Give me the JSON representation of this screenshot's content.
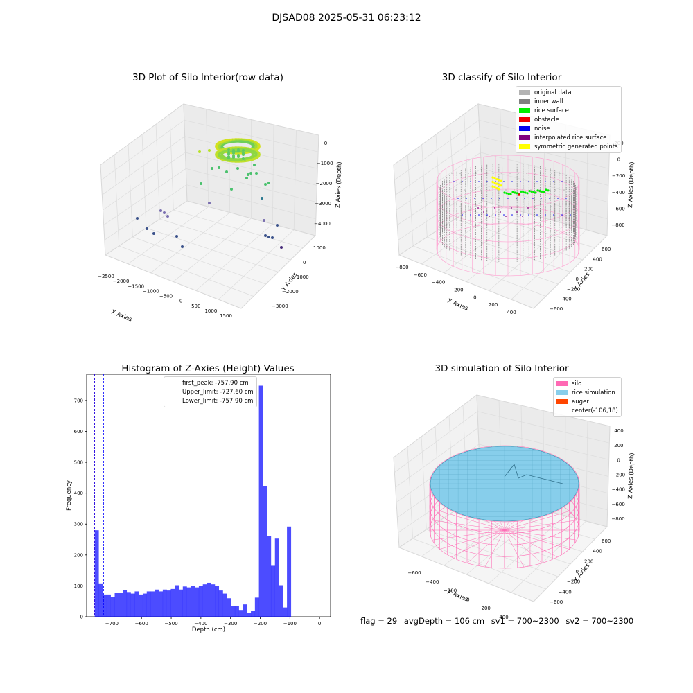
{
  "suptitle": "DJSAD08 2025-05-31 06:23:12",
  "chart_data": [
    {
      "type": "scatter",
      "subtype": "3d",
      "title": "3D Plot of Silo Interior(row data)",
      "xlabel": "X Axies",
      "ylabel": "Y Axies",
      "zlabel": "Z Axies (Depth)",
      "x_ticks": [
        "−2500",
        "−2000",
        "−1500",
        "−1000",
        "−500",
        "0",
        "500",
        "1000",
        "1500"
      ],
      "y_ticks": [
        "1000",
        "0",
        "−1000",
        "−2000",
        "−3000"
      ],
      "z_ticks": [
        "0",
        "−1000",
        "−2000",
        "−3000",
        "−4000"
      ],
      "colormap": "viridis",
      "points_description_values": {
        "dense_ring_center_z": 0,
        "outliers_z_range": [
          -4500,
          -500
        ]
      }
    },
    {
      "type": "scatter",
      "subtype": "3d",
      "title": "3D classify of Silo Interior",
      "xlabel": "X Axies",
      "ylabel": "Y Axies",
      "zlabel": "Z Axies (Depth)",
      "x_ticks": [
        "−800",
        "−600",
        "−400",
        "−200",
        "0",
        "200",
        "400"
      ],
      "y_ticks": [
        "600",
        "400",
        "200",
        "0",
        "−200",
        "−400",
        "−600"
      ],
      "z_ticks": [
        "200",
        "0",
        "−200",
        "−400",
        "−600",
        "−800"
      ],
      "legend": [
        {
          "label": "original data",
          "color": "#b3b3b3"
        },
        {
          "label": "inner wall",
          "color": "#808080"
        },
        {
          "label": "rice surface",
          "color": "#00ee00"
        },
        {
          "label": "obstacle",
          "color": "#ee0000"
        },
        {
          "label": "noise",
          "color": "#0000ee"
        },
        {
          "label": "interpolated rice surface",
          "color": "#800080"
        },
        {
          "label": "symmetric generated points",
          "color": "#ffff00"
        }
      ],
      "legend_position": "top-right"
    },
    {
      "type": "bar",
      "subtype": "histogram",
      "title": "Histogram of Z-Axies (Height) Values",
      "xlabel": "Depth (cm)",
      "ylabel": "Frequency",
      "xlim": [
        -785,
        37
      ],
      "ylim": [
        0,
        785
      ],
      "x_ticks": [
        "−700",
        "−600",
        "−500",
        "−400",
        "−300",
        "−200",
        "−100",
        "0"
      ],
      "y_ticks": [
        "0",
        "100",
        "200",
        "300",
        "400",
        "500",
        "600",
        "700"
      ],
      "bin_width": 13.5,
      "bin_start": -757.9,
      "values": [
        280,
        108,
        72,
        72,
        65,
        78,
        78,
        87,
        80,
        75,
        82,
        72,
        75,
        82,
        82,
        88,
        82,
        88,
        85,
        90,
        102,
        88,
        98,
        95,
        100,
        95,
        100,
        105,
        110,
        105,
        100,
        85,
        75,
        60,
        35,
        35,
        22,
        40,
        12,
        18,
        62,
        748,
        422,
        262,
        165,
        253,
        102,
        30,
        292
      ],
      "color": "#0000ff",
      "vlines": [
        {
          "label": "first_peak: -757.90 cm",
          "x": -757.9,
          "color": "#ff0000"
        },
        {
          "label": "Upper_limit: -727.60 cm",
          "x": -727.6,
          "color": "#0000ff"
        },
        {
          "label": "Lower_limit: -757.90 cm",
          "x": -757.9,
          "color": "#0000ff"
        }
      ],
      "legend_position": "top-center"
    },
    {
      "type": "surface",
      "subtype": "3d",
      "title": "3D simulation of Silo Interior",
      "xlabel": "X Axies",
      "ylabel": "Y Axies",
      "zlabel": "Z Axies (Depth)",
      "x_ticks": [
        "−600",
        "−400",
        "−200",
        "0",
        "200",
        "400"
      ],
      "y_ticks": [
        "600",
        "400",
        "200",
        "0",
        "−200",
        "−400",
        "−600"
      ],
      "z_ticks": [
        "400",
        "200",
        "0",
        "−200",
        "−400",
        "−600",
        "−800"
      ],
      "legend": [
        {
          "label": "silo",
          "color": "#ff69b4"
        },
        {
          "label": "rice simulation",
          "color": "#87ceeb"
        },
        {
          "label": "auger",
          "color": "#ff4500"
        },
        {
          "label": "center(-106,18)",
          "color": ""
        }
      ],
      "legend_position": "top-right"
    }
  ],
  "footer": {
    "flag": "flag = 29",
    "avg": "avgDepth = 106 cm",
    "sv1": "sv1 = 700~2300",
    "sv2": "sv2 = 700~2300"
  }
}
